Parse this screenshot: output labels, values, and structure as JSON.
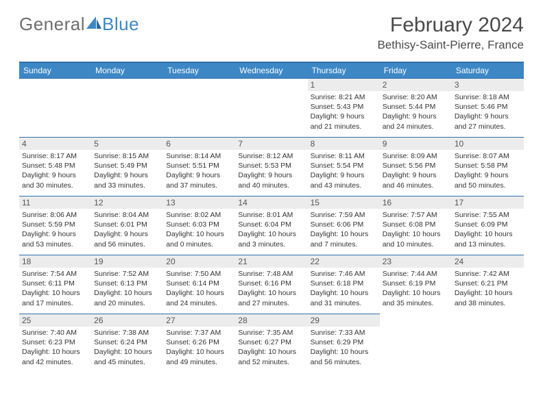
{
  "brand": {
    "word1": "General",
    "word2": "Blue"
  },
  "title": "February 2024",
  "location": "Bethisy-Saint-Pierre, France",
  "colors": {
    "header_bg": "#3d87c5",
    "header_border": "#2f6fa9",
    "daynum_bg": "#ececec",
    "text": "#333333",
    "title_text": "#4a4a4a",
    "logo_gray": "#6e6e6e"
  },
  "typography": {
    "month_title_pt": 30,
    "location_pt": 17,
    "dayhead_pt": 12,
    "body_pt": 10.5
  },
  "weekdays": [
    "Sunday",
    "Monday",
    "Tuesday",
    "Wednesday",
    "Thursday",
    "Friday",
    "Saturday"
  ],
  "leading_blanks": 4,
  "days": [
    {
      "n": "1",
      "sunrise": "8:21 AM",
      "sunset": "5:43 PM",
      "daylight": "9 hours and 21 minutes."
    },
    {
      "n": "2",
      "sunrise": "8:20 AM",
      "sunset": "5:44 PM",
      "daylight": "9 hours and 24 minutes."
    },
    {
      "n": "3",
      "sunrise": "8:18 AM",
      "sunset": "5:46 PM",
      "daylight": "9 hours and 27 minutes."
    },
    {
      "n": "4",
      "sunrise": "8:17 AM",
      "sunset": "5:48 PM",
      "daylight": "9 hours and 30 minutes."
    },
    {
      "n": "5",
      "sunrise": "8:15 AM",
      "sunset": "5:49 PM",
      "daylight": "9 hours and 33 minutes."
    },
    {
      "n": "6",
      "sunrise": "8:14 AM",
      "sunset": "5:51 PM",
      "daylight": "9 hours and 37 minutes."
    },
    {
      "n": "7",
      "sunrise": "8:12 AM",
      "sunset": "5:53 PM",
      "daylight": "9 hours and 40 minutes."
    },
    {
      "n": "8",
      "sunrise": "8:11 AM",
      "sunset": "5:54 PM",
      "daylight": "9 hours and 43 minutes."
    },
    {
      "n": "9",
      "sunrise": "8:09 AM",
      "sunset": "5:56 PM",
      "daylight": "9 hours and 46 minutes."
    },
    {
      "n": "10",
      "sunrise": "8:07 AM",
      "sunset": "5:58 PM",
      "daylight": "9 hours and 50 minutes."
    },
    {
      "n": "11",
      "sunrise": "8:06 AM",
      "sunset": "5:59 PM",
      "daylight": "9 hours and 53 minutes."
    },
    {
      "n": "12",
      "sunrise": "8:04 AM",
      "sunset": "6:01 PM",
      "daylight": "9 hours and 56 minutes."
    },
    {
      "n": "13",
      "sunrise": "8:02 AM",
      "sunset": "6:03 PM",
      "daylight": "10 hours and 0 minutes."
    },
    {
      "n": "14",
      "sunrise": "8:01 AM",
      "sunset": "6:04 PM",
      "daylight": "10 hours and 3 minutes."
    },
    {
      "n": "15",
      "sunrise": "7:59 AM",
      "sunset": "6:06 PM",
      "daylight": "10 hours and 7 minutes."
    },
    {
      "n": "16",
      "sunrise": "7:57 AM",
      "sunset": "6:08 PM",
      "daylight": "10 hours and 10 minutes."
    },
    {
      "n": "17",
      "sunrise": "7:55 AM",
      "sunset": "6:09 PM",
      "daylight": "10 hours and 13 minutes."
    },
    {
      "n": "18",
      "sunrise": "7:54 AM",
      "sunset": "6:11 PM",
      "daylight": "10 hours and 17 minutes."
    },
    {
      "n": "19",
      "sunrise": "7:52 AM",
      "sunset": "6:13 PM",
      "daylight": "10 hours and 20 minutes."
    },
    {
      "n": "20",
      "sunrise": "7:50 AM",
      "sunset": "6:14 PM",
      "daylight": "10 hours and 24 minutes."
    },
    {
      "n": "21",
      "sunrise": "7:48 AM",
      "sunset": "6:16 PM",
      "daylight": "10 hours and 27 minutes."
    },
    {
      "n": "22",
      "sunrise": "7:46 AM",
      "sunset": "6:18 PM",
      "daylight": "10 hours and 31 minutes."
    },
    {
      "n": "23",
      "sunrise": "7:44 AM",
      "sunset": "6:19 PM",
      "daylight": "10 hours and 35 minutes."
    },
    {
      "n": "24",
      "sunrise": "7:42 AM",
      "sunset": "6:21 PM",
      "daylight": "10 hours and 38 minutes."
    },
    {
      "n": "25",
      "sunrise": "7:40 AM",
      "sunset": "6:23 PM",
      "daylight": "10 hours and 42 minutes."
    },
    {
      "n": "26",
      "sunrise": "7:38 AM",
      "sunset": "6:24 PM",
      "daylight": "10 hours and 45 minutes."
    },
    {
      "n": "27",
      "sunrise": "7:37 AM",
      "sunset": "6:26 PM",
      "daylight": "10 hours and 49 minutes."
    },
    {
      "n": "28",
      "sunrise": "7:35 AM",
      "sunset": "6:27 PM",
      "daylight": "10 hours and 52 minutes."
    },
    {
      "n": "29",
      "sunrise": "7:33 AM",
      "sunset": "6:29 PM",
      "daylight": "10 hours and 56 minutes."
    }
  ],
  "labels": {
    "sunrise": "Sunrise: ",
    "sunset": "Sunset: ",
    "daylight": "Daylight: "
  }
}
